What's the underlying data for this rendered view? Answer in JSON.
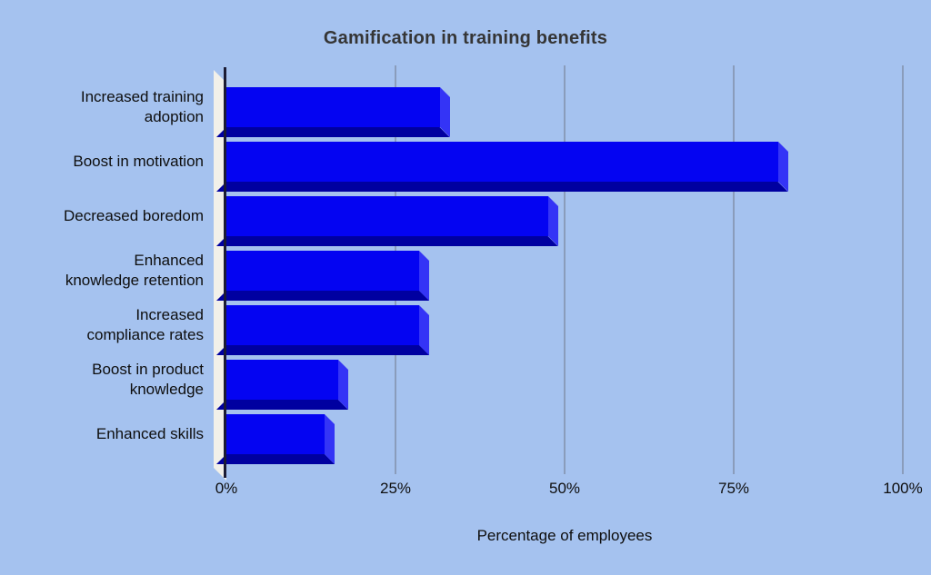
{
  "chart_data": {
    "type": "bar",
    "orientation": "horizontal",
    "style": "3d",
    "title": "Gamification in training benefits",
    "xlabel": "Percentage of employees",
    "ylabel": "",
    "categories": [
      "Increased training\nadoption",
      "Boost in motivation",
      "Decreased boredom",
      "Enhanced\nknowledge retention",
      "Increased\ncompliance rates",
      "Boost in product\nknowledge",
      "Enhanced skills"
    ],
    "values": [
      33,
      83,
      49,
      30,
      30,
      18,
      16
    ],
    "unit": "%",
    "xlim": [
      0,
      100
    ],
    "xticks": [
      "0%",
      "25%",
      "50%",
      "75%",
      "100%"
    ],
    "xtick_values": [
      0,
      25,
      50,
      75,
      100
    ],
    "grid": true,
    "legend": "none",
    "colors": {
      "background": "#a5c2ef",
      "bar_front": "#0404f2",
      "bar_side": "#3434f6",
      "bar_bottom": "#0000a0",
      "wall": "#f2f0e9",
      "axis_line": "#1b1b33",
      "gridline": "#8a9cbb",
      "title_text": "#353535",
      "label_text": "#0e0e0e"
    }
  }
}
